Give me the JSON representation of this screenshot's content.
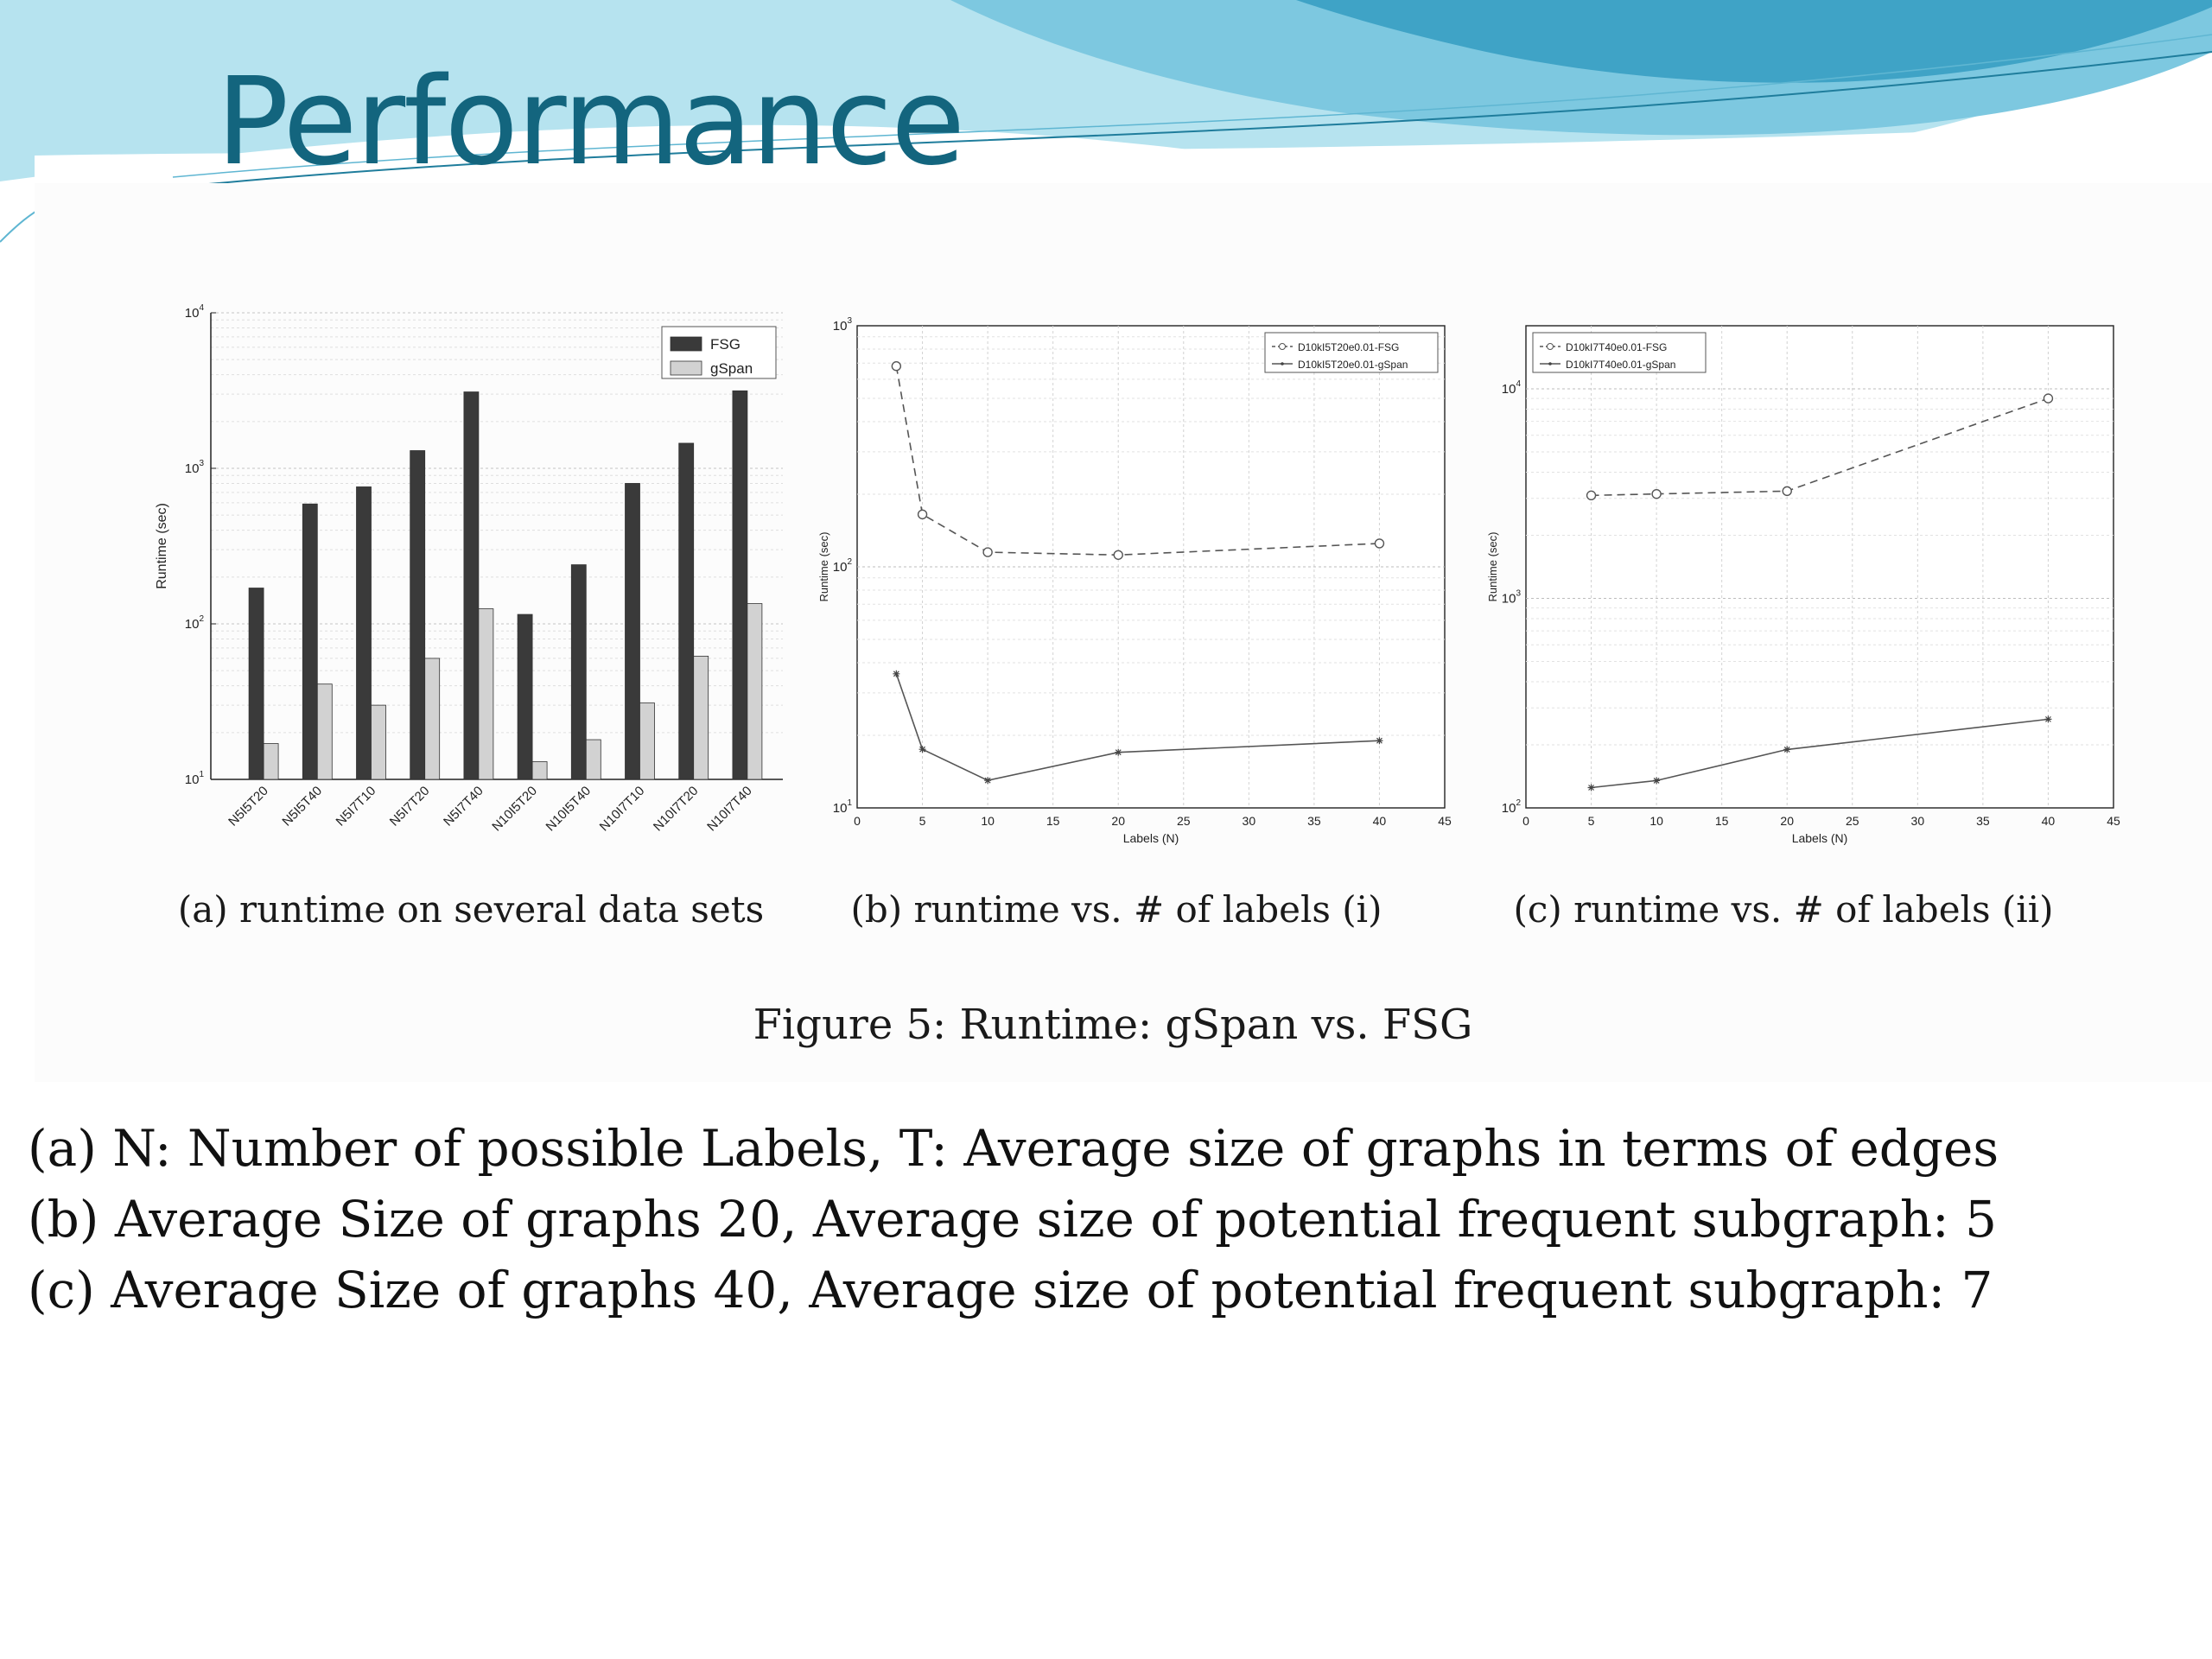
{
  "slide": {
    "title": "Performance"
  },
  "figure_caption": "Figure 5: Runtime: gSpan vs. FSG",
  "notes": [
    "(a) N: Number of possible Labels, T: Average size of graphs in terms of edges",
    "(b) Average Size of graphs 20, Average size of potential frequent subgraph: 5",
    "(c) Average Size of graphs 40, Average size of potential frequent subgraph: 7"
  ],
  "colors": {
    "title": "#13657e",
    "swoosh_light": "#b6e3ef",
    "swoosh_mid": "#7dc8e0",
    "swoosh_dark": "#3fa3c6",
    "fsg_bar": "#3a3a3a",
    "gspan_bar": "#d2d2d2"
  },
  "chart_data": [
    {
      "type": "bar",
      "caption": "(a) runtime on several data sets",
      "ylabel": "Runtime (sec)",
      "xlabel": "",
      "yscale": "log",
      "ylim": [
        10,
        10000
      ],
      "y_tick_labels": [
        "10",
        "10",
        "10",
        "10"
      ],
      "y_tick_exponents": [
        "1",
        "2",
        "3",
        "4"
      ],
      "categories": [
        "N5I5T20",
        "N5I5T40",
        "N5I7T10",
        "N5I7T20",
        "N5I7T40",
        "N10I5T20",
        "N10I5T40",
        "N10I7T10",
        "N10I7T20",
        "N10I7T40"
      ],
      "series": [
        {
          "name": "FSG",
          "values": [
            170,
            590,
            760,
            1300,
            3100,
            115,
            240,
            800,
            1450,
            3150
          ]
        },
        {
          "name": "gSpan",
          "values": [
            17,
            41,
            30,
            60,
            125,
            13,
            18,
            31,
            62,
            135
          ]
        }
      ],
      "grid": true,
      "legend": "top-right"
    },
    {
      "type": "line",
      "caption": "(b) runtime vs. # of labels (i)",
      "xlabel": "Labels (N)",
      "ylabel": "Runtime (sec)",
      "yscale": "log",
      "xlim": [
        0,
        45
      ],
      "ylim": [
        10,
        1000
      ],
      "x_ticks": [
        "0",
        "5",
        "10",
        "15",
        "20",
        "25",
        "30",
        "35",
        "40",
        "45"
      ],
      "y_tick_labels": [
        "10",
        "10",
        "10"
      ],
      "y_tick_exponents": [
        "1",
        "2",
        "3"
      ],
      "series": [
        {
          "name": "D10kI5T20e0.01-FSG",
          "style": "dashed-circle",
          "x": [
            3,
            5,
            10,
            20,
            40
          ],
          "y": [
            680,
            165,
            115,
            112,
            125
          ]
        },
        {
          "name": "D10kI5T20e0.01-gSpan",
          "style": "solid-star",
          "x": [
            3,
            5,
            10,
            20,
            40
          ],
          "y": [
            36,
            17.5,
            13,
            17,
            19
          ]
        }
      ],
      "grid": true,
      "legend": "top-right"
    },
    {
      "type": "line",
      "caption": "(c) runtime vs. # of labels (ii)",
      "xlabel": "Labels (N)",
      "ylabel": "Runtime (sec)",
      "yscale": "log",
      "xlim": [
        0,
        45
      ],
      "ylim": [
        100,
        20000
      ],
      "x_ticks": [
        "0",
        "5",
        "10",
        "15",
        "20",
        "25",
        "30",
        "35",
        "40",
        "45"
      ],
      "y_tick_labels": [
        "10",
        "10",
        "10"
      ],
      "y_tick_exponents": [
        "2",
        "3",
        "4"
      ],
      "series": [
        {
          "name": "D10kI7T40e0.01-FSG",
          "style": "dashed-circle",
          "x": [
            5,
            10,
            20,
            40
          ],
          "y": [
            3100,
            3150,
            3250,
            9000
          ]
        },
        {
          "name": "D10kI7T40e0.01-gSpan",
          "style": "solid-star",
          "x": [
            5,
            10,
            20,
            40
          ],
          "y": [
            125,
            135,
            190,
            265
          ]
        }
      ],
      "grid": true,
      "legend": "top-left"
    }
  ]
}
